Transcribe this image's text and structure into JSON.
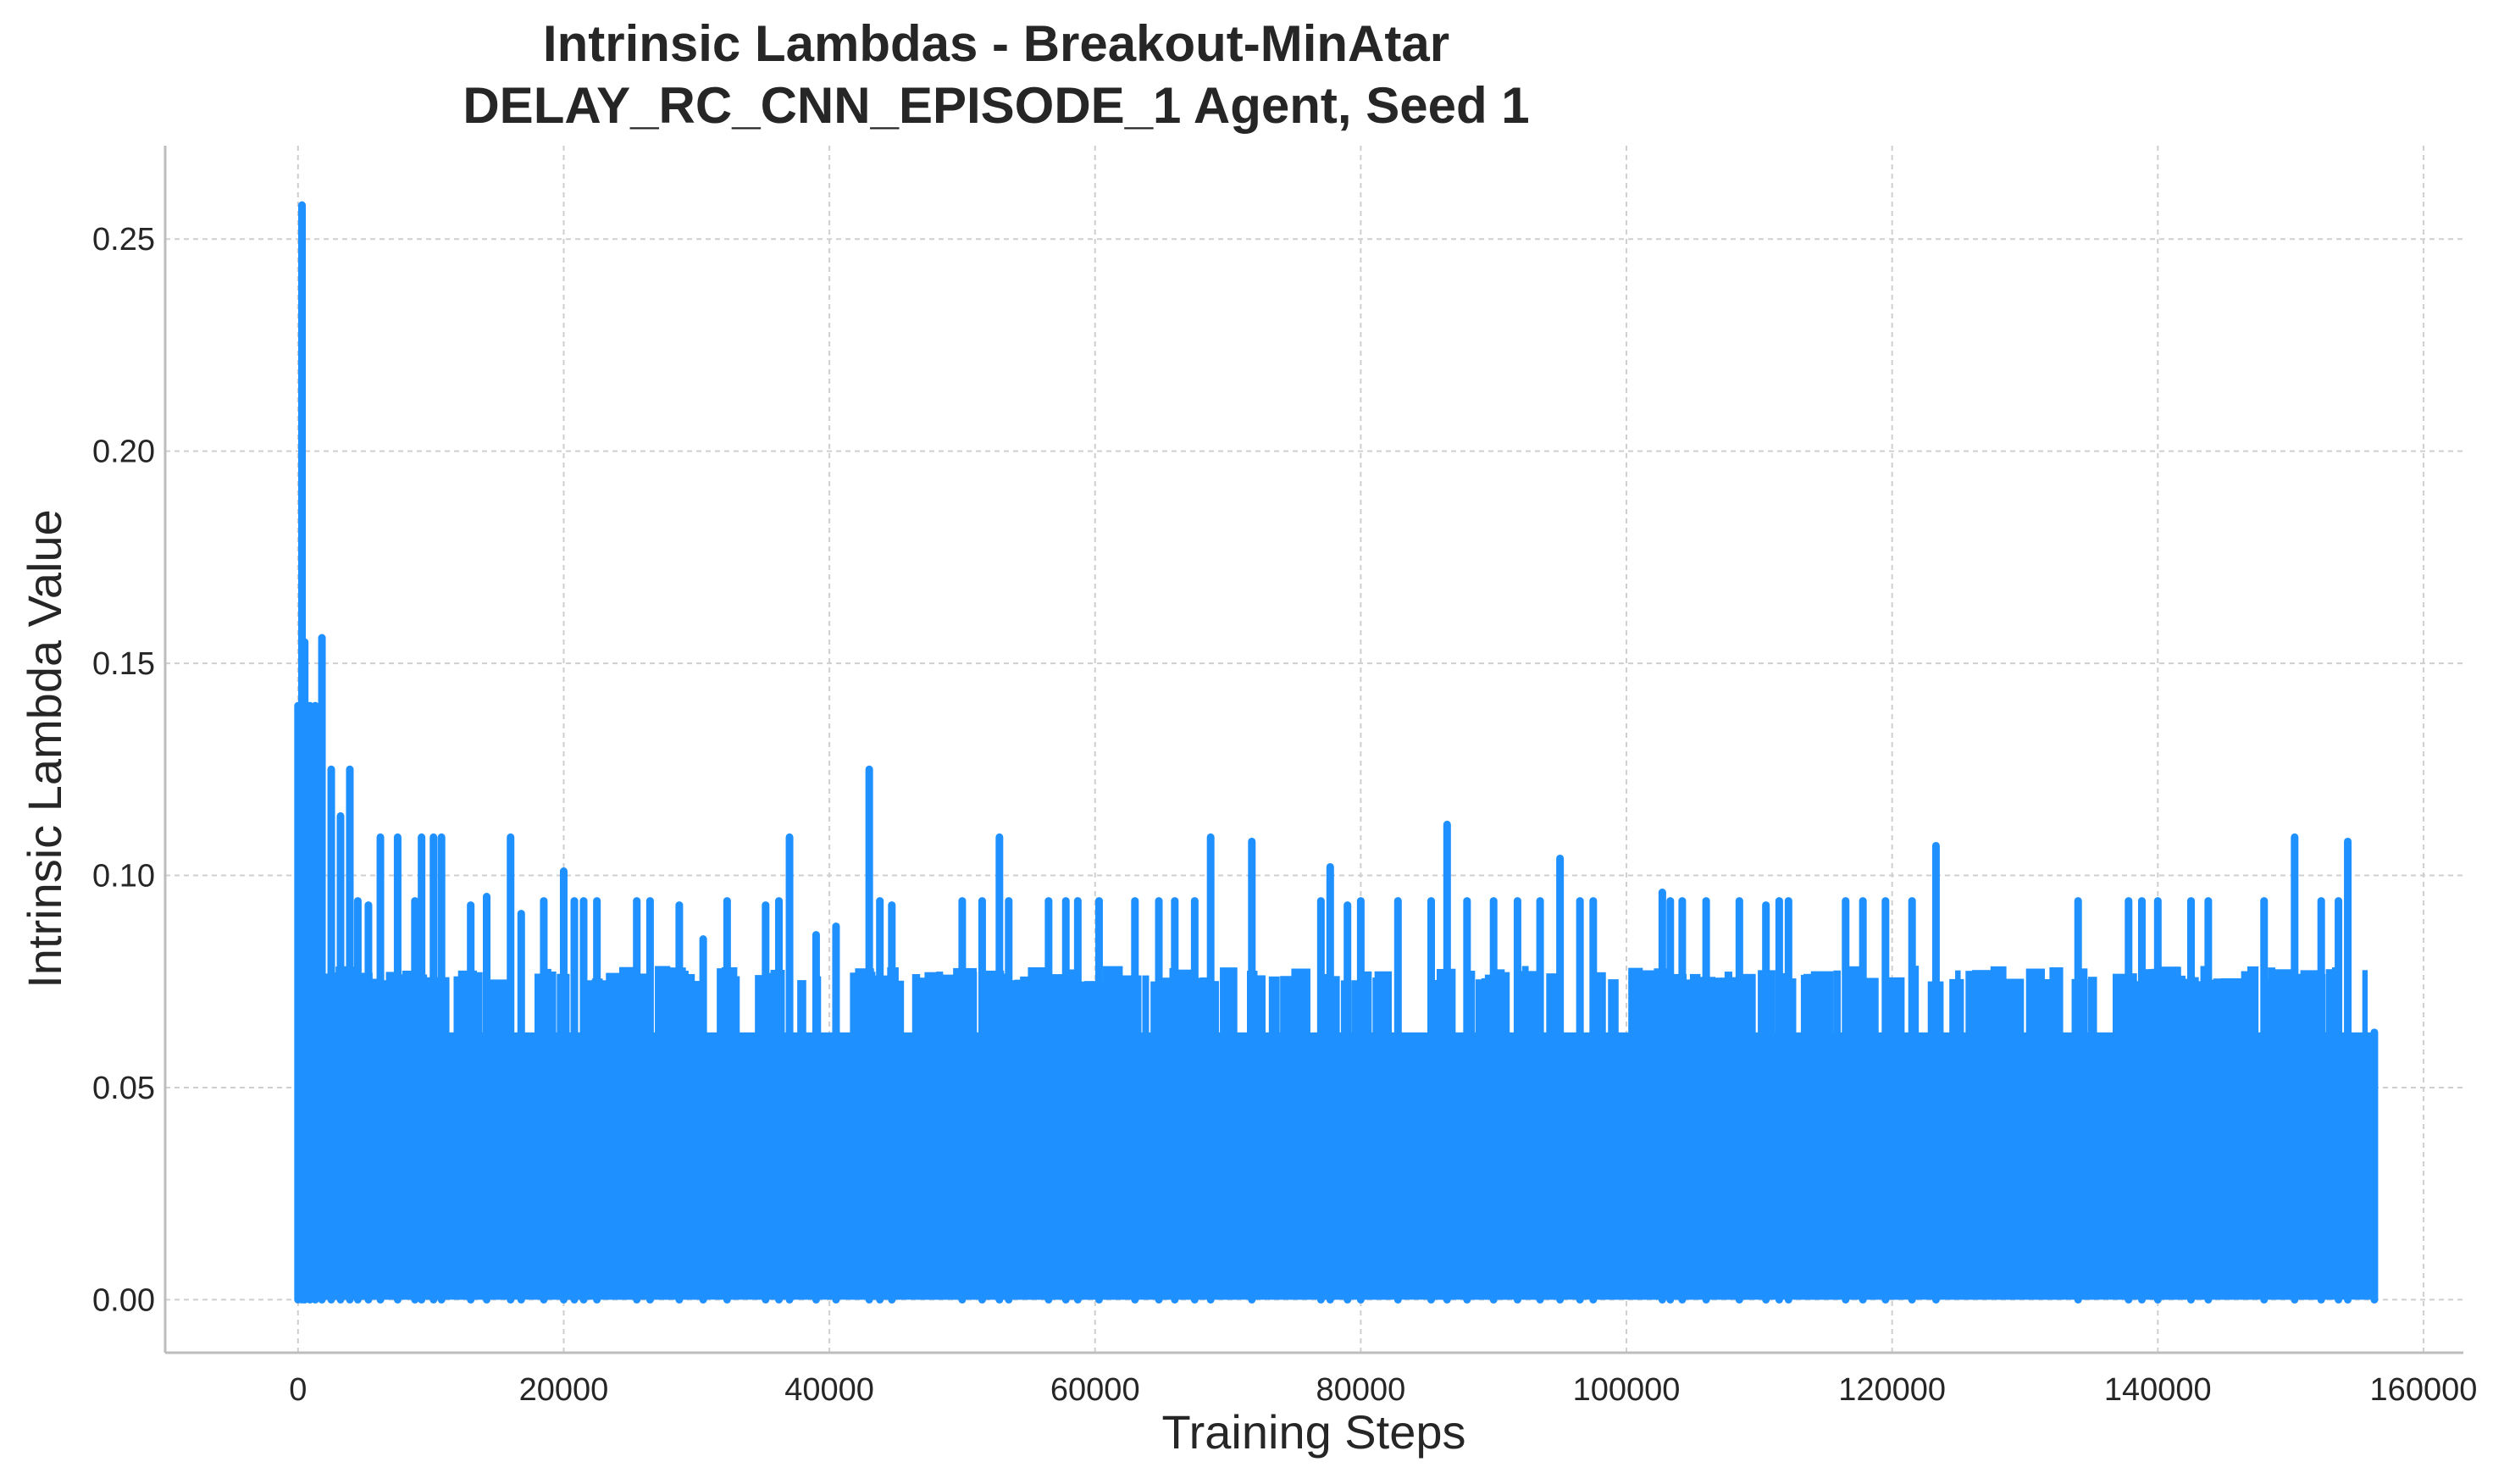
{
  "colors": {
    "series": "#1e90ff",
    "grid": "#cfcfcf",
    "axis": "#bdbdbd",
    "text": "#262626"
  },
  "chart_data": {
    "type": "line",
    "title": "Intrinsic Lambdas - Breakout-MinAtar",
    "subtitle": "DELAY_RC_CNN_EPISODE_1 Agent, Seed 1",
    "xlabel": "Training Steps",
    "ylabel": "Intrinsic Lambda Value",
    "xlim": [
      -10000,
      163000
    ],
    "ylim": [
      -0.0125,
      0.272
    ],
    "grid": true,
    "x_ticks": [
      0,
      20000,
      40000,
      60000,
      80000,
      100000,
      120000,
      140000,
      160000
    ],
    "x_tick_labels": [
      "0",
      "20000",
      "40000",
      "60000",
      "80000",
      "100000",
      "120000",
      "140000",
      "160000"
    ],
    "y_ticks": [
      0.0,
      0.05,
      0.1,
      0.15,
      0.2,
      0.25
    ],
    "y_tick_labels": [
      "0.00",
      "0.05",
      "0.10",
      "0.15",
      "0.20",
      "0.25"
    ],
    "series": [
      {
        "name": "Intrinsic Lambda",
        "x_range": [
          0,
          156500
        ],
        "baseline_min": 0.0,
        "dense_band_max": 0.063,
        "peaks": [
          [
            0,
            0.14
          ],
          [
            300,
            0.258
          ],
          [
            500,
            0.155
          ],
          [
            900,
            0.14
          ],
          [
            1300,
            0.14
          ],
          [
            1800,
            0.156
          ],
          [
            2500,
            0.125
          ],
          [
            3200,
            0.114
          ],
          [
            3900,
            0.125
          ],
          [
            4500,
            0.094
          ],
          [
            5300,
            0.093
          ],
          [
            6200,
            0.109
          ],
          [
            7500,
            0.109
          ],
          [
            8800,
            0.094
          ],
          [
            9300,
            0.109
          ],
          [
            10200,
            0.109
          ],
          [
            10800,
            0.109
          ],
          [
            13000,
            0.093
          ],
          [
            14200,
            0.095
          ],
          [
            16000,
            0.109
          ],
          [
            16800,
            0.091
          ],
          [
            18500,
            0.094
          ],
          [
            20000,
            0.101
          ],
          [
            20800,
            0.094
          ],
          [
            21500,
            0.094
          ],
          [
            22500,
            0.094
          ],
          [
            25500,
            0.094
          ],
          [
            26500,
            0.094
          ],
          [
            28700,
            0.093
          ],
          [
            30500,
            0.085
          ],
          [
            32300,
            0.094
          ],
          [
            35200,
            0.093
          ],
          [
            36200,
            0.094
          ],
          [
            37000,
            0.109
          ],
          [
            39000,
            0.086
          ],
          [
            40500,
            0.088
          ],
          [
            43000,
            0.125
          ],
          [
            43800,
            0.094
          ],
          [
            44700,
            0.093
          ],
          [
            50000,
            0.094
          ],
          [
            51500,
            0.094
          ],
          [
            52800,
            0.109
          ],
          [
            53500,
            0.094
          ],
          [
            56500,
            0.094
          ],
          [
            57800,
            0.094
          ],
          [
            58700,
            0.094
          ],
          [
            60300,
            0.094
          ],
          [
            63000,
            0.094
          ],
          [
            64800,
            0.094
          ],
          [
            66000,
            0.094
          ],
          [
            67500,
            0.094
          ],
          [
            68700,
            0.109
          ],
          [
            71800,
            0.108
          ],
          [
            77000,
            0.094
          ],
          [
            77700,
            0.102
          ],
          [
            79000,
            0.093
          ],
          [
            80000,
            0.094
          ],
          [
            82800,
            0.094
          ],
          [
            85300,
            0.094
          ],
          [
            86500,
            0.112
          ],
          [
            88000,
            0.094
          ],
          [
            90000,
            0.094
          ],
          [
            91800,
            0.094
          ],
          [
            93500,
            0.094
          ],
          [
            95000,
            0.104
          ],
          [
            96500,
            0.094
          ],
          [
            97500,
            0.094
          ],
          [
            102700,
            0.096
          ],
          [
            103300,
            0.094
          ],
          [
            104200,
            0.094
          ],
          [
            106000,
            0.094
          ],
          [
            108500,
            0.094
          ],
          [
            110500,
            0.093
          ],
          [
            111500,
            0.094
          ],
          [
            112200,
            0.094
          ],
          [
            116500,
            0.094
          ],
          [
            117800,
            0.094
          ],
          [
            119500,
            0.094
          ],
          [
            121500,
            0.094
          ],
          [
            123300,
            0.107
          ],
          [
            134000,
            0.094
          ],
          [
            137800,
            0.094
          ],
          [
            138800,
            0.094
          ],
          [
            140000,
            0.094
          ],
          [
            142500,
            0.094
          ],
          [
            143800,
            0.094
          ],
          [
            148000,
            0.094
          ],
          [
            150300,
            0.109
          ],
          [
            152300,
            0.094
          ],
          [
            153600,
            0.094
          ],
          [
            154300,
            0.108
          ],
          [
            156300,
            0.063
          ]
        ],
        "secondary_level": 0.078
      }
    ]
  }
}
